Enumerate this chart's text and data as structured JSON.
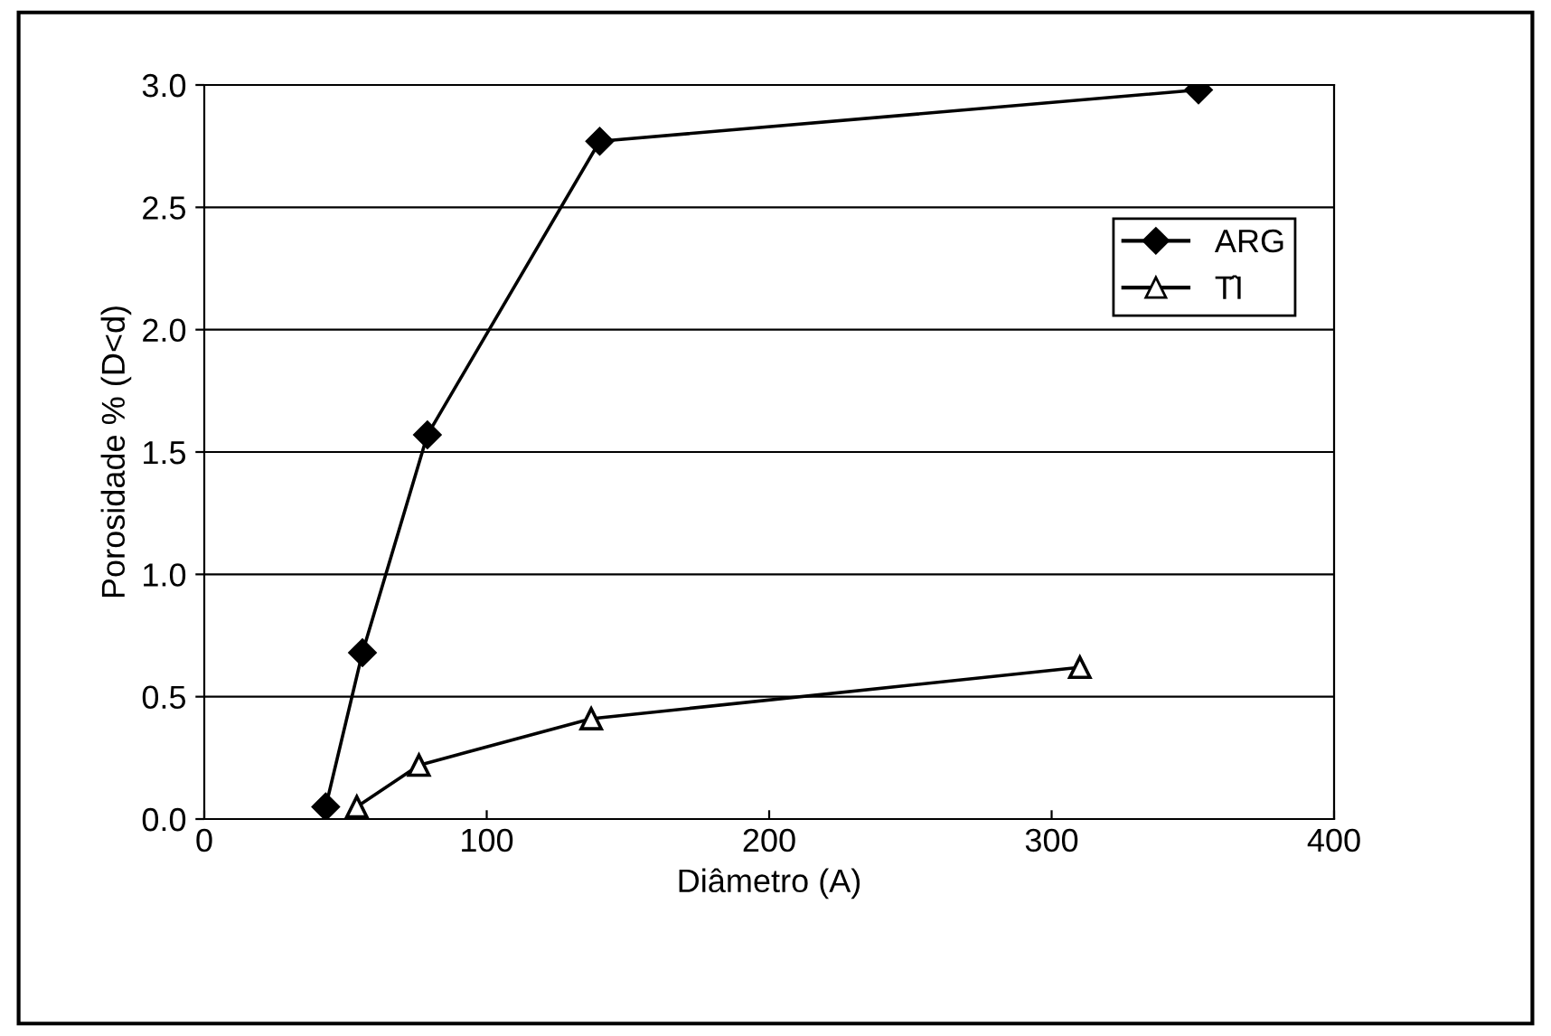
{
  "chart_data": {
    "type": "line",
    "xlabel": "Diâmetro (A)",
    "ylabel": "Porosidade % (D<d)",
    "series": [
      {
        "name": "ARG",
        "color": "#000000",
        "marker": "diamond",
        "x": [
          43,
          56,
          79,
          140,
          352
        ],
        "values": [
          0.05,
          0.68,
          1.57,
          2.77,
          2.98
        ]
      },
      {
        "name": "T̂I",
        "color": "#000000",
        "marker": "triangle",
        "x": [
          54,
          76,
          137,
          310
        ],
        "values": [
          0.05,
          0.22,
          0.41,
          0.62
        ]
      }
    ],
    "xlim": [
      0,
      400
    ],
    "xticks": [
      0,
      100,
      200,
      300,
      400
    ],
    "ylim": [
      0,
      3.0
    ],
    "yticks": [
      {
        "value": 0,
        "label": "0.0"
      },
      {
        "value": 0.5,
        "label": "0.5"
      },
      {
        "value": 1.0,
        "label": "1.0"
      },
      {
        "value": 1.5,
        "label": "1.5"
      },
      {
        "value": 2.0,
        "label": "2.0"
      },
      {
        "value": 2.5,
        "label": "2.5"
      },
      {
        "value": 3.0,
        "label": "3.0"
      }
    ],
    "grid": "y",
    "legend": "top right",
    "line_style": "solid"
  }
}
